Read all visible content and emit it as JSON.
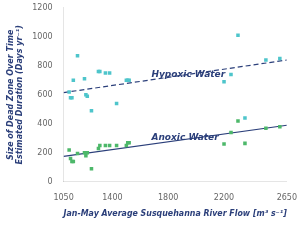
{
  "chart_data": {
    "type": "scatter",
    "xlabel": "Jan-May Average Susquehanna River Flow [m³ s⁻¹]",
    "ylabel": "Size of Dead Zone Over Time\nEstimated Duration (Days yr⁻¹)",
    "xlim": [
      1050,
      2650
    ],
    "ylim": [
      0,
      1200
    ],
    "xticks": [
      1050,
      1400,
      1800,
      2200,
      2650
    ],
    "yticks": [
      0,
      200,
      400,
      600,
      800,
      1000,
      1200
    ],
    "grid": false,
    "series": [
      {
        "type": "scatter",
        "color": "#4ec5cb",
        "marker": "square",
        "x": [
          1090,
          1100,
          1110,
          1120,
          1150,
          1200,
          1210,
          1220,
          1250,
          1300,
          1310,
          1350,
          1380,
          1430,
          1500,
          1510,
          1520,
          2200,
          2250,
          2300,
          2350,
          2500,
          2600
        ],
        "values": [
          620,
          580,
          580,
          700,
          870,
          710,
          600,
          590,
          490,
          760,
          760,
          750,
          750,
          540,
          700,
          700,
          700,
          690,
          740,
          1010,
          440,
          840,
          850
        ]
      },
      {
        "type": "scatter",
        "color": "#4db86a",
        "marker": "square",
        "x": [
          1090,
          1100,
          1110,
          1120,
          1150,
          1200,
          1210,
          1220,
          1250,
          1300,
          1310,
          1350,
          1380,
          1430,
          1500,
          1510,
          1520,
          2200,
          2250,
          2300,
          2350,
          2500,
          2600
        ],
        "values": [
          220,
          160,
          140,
          140,
          195,
          200,
          180,
          200,
          90,
          230,
          250,
          250,
          250,
          250,
          250,
          270,
          270,
          260,
          340,
          420,
          265,
          370,
          380
        ]
      },
      {
        "type": "line",
        "color": "#2b3f7a",
        "line_style": "dashed",
        "x": [
          1050,
          2650
        ],
        "values": [
          615,
          840
        ]
      },
      {
        "type": "line",
        "color": "#2b3f7a",
        "line_style": "solid",
        "x": [
          1050,
          2650
        ],
        "values": [
          175,
          390
        ]
      }
    ],
    "annotations": [
      {
        "text": "Hypoxic Water",
        "x": 1680,
        "y": 720
      },
      {
        "text": "Anoxic Water",
        "x": 1680,
        "y": 290
      }
    ]
  }
}
